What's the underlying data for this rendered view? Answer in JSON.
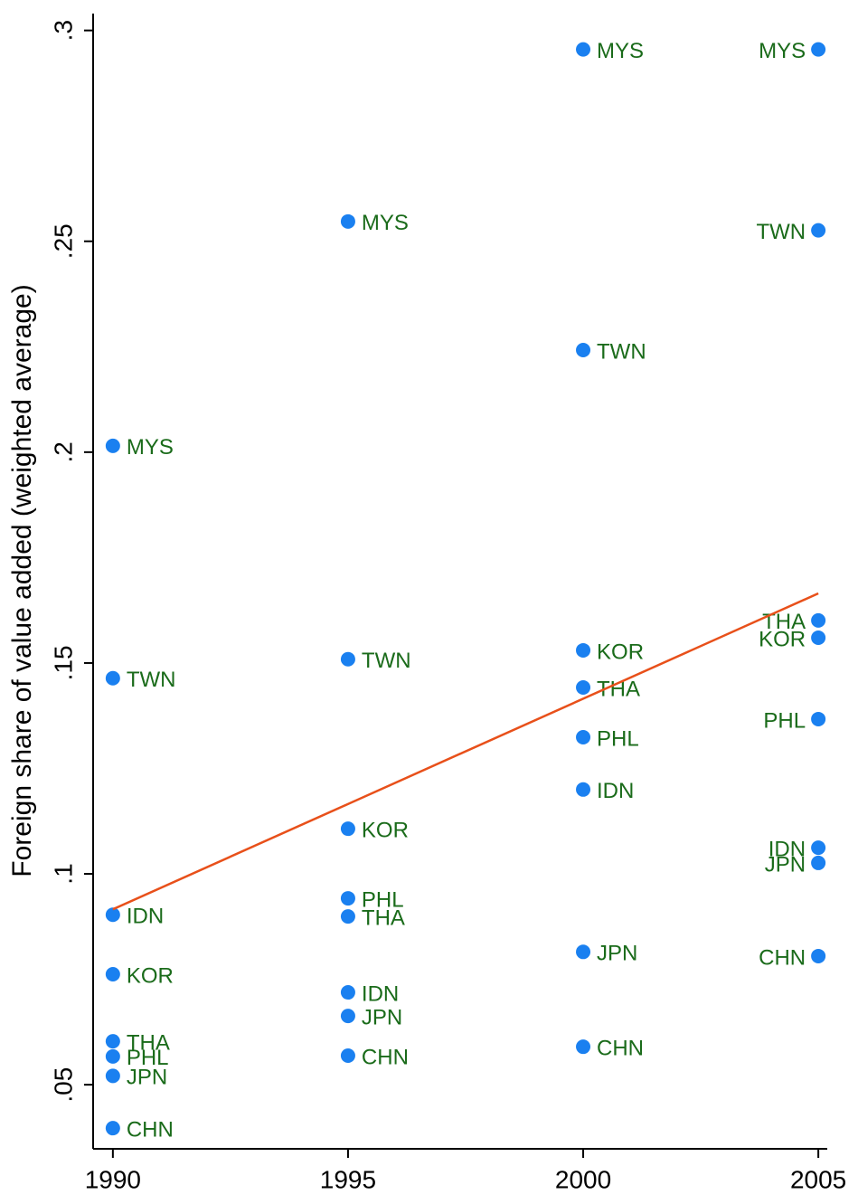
{
  "chart_data": {
    "type": "scatter",
    "y_label": "Foreign share of value added (weighted average)",
    "xlim": [
      1989.58,
      2005.19
    ],
    "ylim": [
      0.0348,
      0.304
    ],
    "xticks": [
      1990,
      1995,
      2000,
      2005
    ],
    "yticks": [
      {
        "value": 0.05,
        "label": ".05"
      },
      {
        "value": 0.1,
        "label": ".1"
      },
      {
        "value": 0.15,
        "label": ".15"
      },
      {
        "value": 0.2,
        "label": ".2"
      },
      {
        "value": 0.25,
        "label": ".25"
      },
      {
        "value": 0.3,
        "label": ".3"
      }
    ],
    "points": {
      "color": "#1a80f0",
      "label_color": "#1a6b1a",
      "x": [
        1990,
        1990,
        1990,
        1990,
        1990,
        1990,
        1990,
        1990,
        1995,
        1995,
        1995,
        1995,
        1995,
        1995,
        1995,
        1995,
        2000,
        2000,
        2000,
        2000,
        2000,
        2000,
        2000,
        2000,
        2005,
        2005,
        2005,
        2005,
        2005,
        2005,
        2005,
        2005
      ],
      "values": [
        0.2015,
        0.1464,
        0.0903,
        0.0762,
        0.0603,
        0.0567,
        0.0521,
        0.0397,
        0.2547,
        0.1509,
        0.1107,
        0.0942,
        0.0899,
        0.0719,
        0.0663,
        0.0569,
        0.2955,
        0.2242,
        0.153,
        0.1442,
        0.1324,
        0.12,
        0.0815,
        0.059,
        0.2955,
        0.2526,
        0.1601,
        0.156,
        0.1367,
        0.1062,
        0.1026,
        0.0805
      ],
      "labels": [
        "MYS",
        "TWN",
        "IDN",
        "KOR",
        "THA",
        "PHL",
        "JPN",
        "CHN",
        "MYS",
        "TWN",
        "KOR",
        "PHL",
        "THA",
        "IDN",
        "JPN",
        "CHN",
        "MYS",
        "TWN",
        "KOR",
        "THA",
        "PHL",
        "IDN",
        "JPN",
        "CHN",
        "MYS",
        "TWN",
        "THA",
        "KOR",
        "PHL",
        "IDN",
        "JPN",
        "CHN"
      ]
    },
    "fit": {
      "color": "#e8501a",
      "x": [
        1990,
        2005
      ],
      "values": [
        0.0916,
        0.1665
      ]
    }
  }
}
